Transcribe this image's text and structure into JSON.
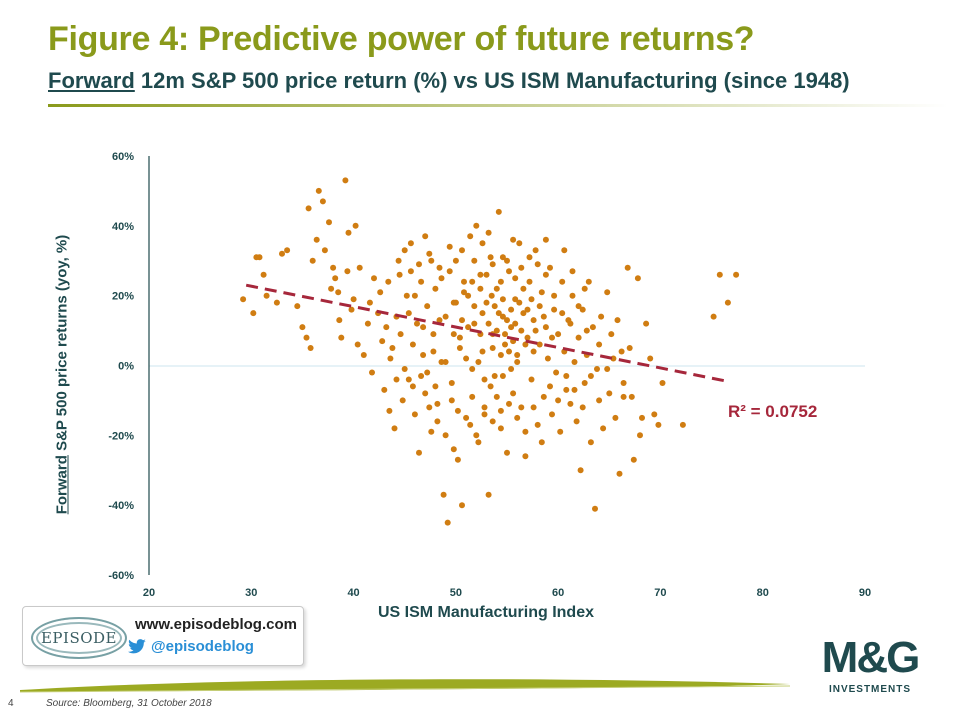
{
  "header": {
    "title": "Figure 4: Predictive power of future returns?",
    "subtitle_underlined": "Forward",
    "subtitle_rest": " 12m S&P 500 price return (%) vs US ISM Manufacturing (since 1948)"
  },
  "chart_data": {
    "type": "scatter",
    "xlabel": "US ISM Manufacturing Index",
    "ylabel_underlined": "Forward",
    "ylabel_rest": " S&P 500 price returns (yoy, %)",
    "xlim": [
      20,
      90
    ],
    "ylim": [
      -60,
      60
    ],
    "x_ticks": [
      "20",
      "30",
      "40",
      "50",
      "60",
      "70",
      "80",
      "90"
    ],
    "y_ticks": [
      "60%",
      "40%",
      "20%",
      "0%",
      "-20%",
      "-40%",
      "-60%"
    ],
    "grid": false,
    "trendline": {
      "x": [
        29.5,
        76.5
      ],
      "y": [
        23,
        -4.5
      ],
      "annotation": "R² = 0.0752"
    },
    "colors": {
      "points": "#d07d12",
      "trendline": "#a6273b",
      "axis": "#1f4a4e",
      "zero_line": "#cde6ef"
    },
    "points": [
      [
        29.2,
        19
      ],
      [
        30.2,
        15
      ],
      [
        30.5,
        31
      ],
      [
        30.8,
        31
      ],
      [
        31.2,
        26
      ],
      [
        31.5,
        20
      ],
      [
        32.5,
        18
      ],
      [
        33,
        32
      ],
      [
        33.5,
        33
      ],
      [
        34.5,
        17
      ],
      [
        35,
        11
      ],
      [
        35.4,
        8
      ],
      [
        35.8,
        5
      ],
      [
        35.6,
        45
      ],
      [
        36,
        30
      ],
      [
        36.4,
        36
      ],
      [
        36.6,
        50
      ],
      [
        37,
        47
      ],
      [
        37.2,
        33
      ],
      [
        37.6,
        41
      ],
      [
        38,
        28
      ],
      [
        38.2,
        25
      ],
      [
        38.5,
        21
      ],
      [
        38.8,
        8
      ],
      [
        39.2,
        53
      ],
      [
        39.5,
        38
      ],
      [
        39.8,
        16
      ],
      [
        40,
        19
      ],
      [
        40.2,
        40
      ],
      [
        40.6,
        28
      ],
      [
        41,
        3
      ],
      [
        41.4,
        12
      ],
      [
        41.8,
        -2
      ],
      [
        42,
        25
      ],
      [
        42.4,
        15
      ],
      [
        42.8,
        7
      ],
      [
        43,
        -7
      ],
      [
        43.2,
        11
      ],
      [
        43.5,
        -13
      ],
      [
        43.8,
        5
      ],
      [
        44,
        -18
      ],
      [
        44.2,
        14
      ],
      [
        44.5,
        26
      ],
      [
        44.8,
        -10
      ],
      [
        45,
        33
      ],
      [
        45.2,
        20
      ],
      [
        45.4,
        -4
      ],
      [
        45.6,
        27
      ],
      [
        45.8,
        6
      ],
      [
        46,
        -14
      ],
      [
        46.2,
        12
      ],
      [
        46.4,
        -25
      ],
      [
        46.6,
        24
      ],
      [
        46.8,
        3
      ],
      [
        47,
        -8
      ],
      [
        47.2,
        17
      ],
      [
        47.4,
        32
      ],
      [
        47.6,
        -19
      ],
      [
        47.8,
        9
      ],
      [
        48,
        22
      ],
      [
        48.2,
        -11
      ],
      [
        48.4,
        28
      ],
      [
        48.6,
        1
      ],
      [
        48.8,
        -37
      ],
      [
        49,
        14
      ],
      [
        49.2,
        -45
      ],
      [
        49.4,
        34
      ],
      [
        49.6,
        -5
      ],
      [
        49.8,
        18
      ],
      [
        50,
        30
      ],
      [
        50.2,
        -27
      ],
      [
        50.4,
        8
      ],
      [
        50.6,
        -40
      ],
      [
        50.8,
        24
      ],
      [
        51,
        -15
      ],
      [
        51.2,
        20
      ],
      [
        51.4,
        37
      ],
      [
        51.6,
        -9
      ],
      [
        51.8,
        12
      ],
      [
        52,
        40
      ],
      [
        52.2,
        -22
      ],
      [
        52.4,
        26
      ],
      [
        52.6,
        4
      ],
      [
        52.8,
        -14
      ],
      [
        53,
        18
      ],
      [
        53.2,
        -37
      ],
      [
        53.4,
        31
      ],
      [
        53.6,
        9
      ],
      [
        53.8,
        -3
      ],
      [
        54,
        22
      ],
      [
        54.2,
        44
      ],
      [
        54.4,
        -18
      ],
      [
        54.6,
        14
      ],
      [
        54.8,
        6
      ],
      [
        55,
        -25
      ],
      [
        55.2,
        27
      ],
      [
        55.4,
        11
      ],
      [
        55.6,
        -8
      ],
      [
        55.8,
        19
      ],
      [
        56,
        3
      ],
      [
        56.2,
        35
      ],
      [
        56.4,
        -12
      ],
      [
        56.6,
        15
      ],
      [
        56.8,
        -26
      ],
      [
        57,
        8
      ],
      [
        57.2,
        24
      ],
      [
        57.4,
        -4
      ],
      [
        57.6,
        13
      ],
      [
        57.8,
        33
      ],
      [
        58,
        -17
      ],
      [
        58.2,
        6
      ],
      [
        58.4,
        21
      ],
      [
        58.6,
        -9
      ],
      [
        58.8,
        11
      ],
      [
        59,
        2
      ],
      [
        59.2,
        28
      ],
      [
        59.4,
        -14
      ],
      [
        59.6,
        16
      ],
      [
        59.8,
        -2
      ],
      [
        60,
        9
      ],
      [
        60.2,
        -19
      ],
      [
        60.4,
        24
      ],
      [
        60.6,
        4
      ],
      [
        60.8,
        -7
      ],
      [
        61,
        13
      ],
      [
        61.2,
        -11
      ],
      [
        61.4,
        20
      ],
      [
        61.6,
        1
      ],
      [
        61.8,
        -16
      ],
      [
        62,
        8
      ],
      [
        62.2,
        -30
      ],
      [
        62.4,
        16
      ],
      [
        62.6,
        -5
      ],
      [
        62.8,
        3
      ],
      [
        63,
        24
      ],
      [
        63.2,
        -22
      ],
      [
        63.4,
        11
      ],
      [
        63.6,
        -41
      ],
      [
        63.8,
        -1
      ],
      [
        64,
        6
      ],
      [
        64.4,
        -18
      ],
      [
        64.8,
        21
      ],
      [
        65,
        -8
      ],
      [
        65.4,
        2
      ],
      [
        65.8,
        13
      ],
      [
        66,
        -31
      ],
      [
        66.4,
        -9
      ],
      [
        66.8,
        28
      ],
      [
        67,
        5
      ],
      [
        67.4,
        -27
      ],
      [
        67.8,
        25
      ],
      [
        68.2,
        -15
      ],
      [
        68.6,
        12
      ],
      [
        69,
        2
      ],
      [
        69.4,
        -14
      ],
      [
        69.8,
        -17
      ],
      [
        70.2,
        -5
      ],
      [
        72.2,
        -17
      ],
      [
        75.2,
        14
      ],
      [
        75.8,
        26
      ],
      [
        76.6,
        18
      ],
      [
        77.4,
        26
      ],
      [
        53.5,
        20
      ],
      [
        53.8,
        17
      ],
      [
        54.2,
        15
      ],
      [
        54.6,
        19
      ],
      [
        55,
        13
      ],
      [
        55.4,
        16
      ],
      [
        55.8,
        12
      ],
      [
        56.2,
        18
      ],
      [
        53.2,
        12
      ],
      [
        54,
        10
      ],
      [
        54.8,
        9
      ],
      [
        55.6,
        7
      ],
      [
        56.4,
        10
      ],
      [
        52.6,
        15
      ],
      [
        51.8,
        17
      ],
      [
        52.4,
        9
      ],
      [
        53.6,
        5
      ],
      [
        54.4,
        3
      ],
      [
        55.2,
        4
      ],
      [
        56,
        1
      ],
      [
        56.8,
        6
      ],
      [
        57.6,
        4
      ],
      [
        50.6,
        13
      ],
      [
        51.2,
        11
      ],
      [
        49.8,
        9
      ],
      [
        50.4,
        5
      ],
      [
        51,
        2
      ],
      [
        51.6,
        -1
      ],
      [
        52.2,
        1
      ],
      [
        52.8,
        -4
      ],
      [
        53.4,
        -6
      ],
      [
        54,
        -9
      ],
      [
        54.6,
        -3
      ],
      [
        55.4,
        -1
      ],
      [
        57,
        16
      ],
      [
        57.8,
        10
      ],
      [
        58.6,
        14
      ],
      [
        59.4,
        8
      ],
      [
        48.4,
        13
      ],
      [
        47.8,
        4
      ],
      [
        46.8,
        11
      ],
      [
        47.2,
        -2
      ],
      [
        48,
        -6
      ],
      [
        49,
        1
      ],
      [
        49.6,
        -10
      ],
      [
        50.2,
        -13
      ],
      [
        51.4,
        -17
      ],
      [
        52,
        -20
      ],
      [
        50,
        18
      ],
      [
        50.8,
        21
      ],
      [
        51.6,
        24
      ],
      [
        52.4,
        22
      ],
      [
        53,
        26
      ],
      [
        53.6,
        29
      ],
      [
        54.4,
        24
      ],
      [
        55,
        30
      ],
      [
        55.8,
        25
      ],
      [
        56.6,
        22
      ],
      [
        57.4,
        19
      ],
      [
        58.2,
        17
      ],
      [
        58.8,
        26
      ],
      [
        59.6,
        20
      ],
      [
        60.4,
        15
      ],
      [
        61.2,
        12
      ],
      [
        62,
        17
      ],
      [
        62.8,
        10
      ],
      [
        46,
        20
      ],
      [
        45.4,
        15
      ],
      [
        44.6,
        9
      ],
      [
        43.6,
        2
      ],
      [
        44.2,
        -4
      ],
      [
        45,
        -1
      ],
      [
        45.8,
        -6
      ],
      [
        46.6,
        -3
      ],
      [
        47.4,
        -12
      ],
      [
        48.2,
        -16
      ],
      [
        49,
        -20
      ],
      [
        49.8,
        -24
      ],
      [
        52.8,
        -12
      ],
      [
        53.6,
        -16
      ],
      [
        54.4,
        -13
      ],
      [
        55.2,
        -11
      ],
      [
        56,
        -15
      ],
      [
        56.8,
        -19
      ],
      [
        57.6,
        -12
      ],
      [
        58.4,
        -22
      ],
      [
        59.2,
        -6
      ],
      [
        60,
        -10
      ],
      [
        60.8,
        -3
      ],
      [
        61.6,
        -7
      ],
      [
        62.4,
        -12
      ],
      [
        63.2,
        -3
      ],
      [
        64,
        -10
      ],
      [
        64.8,
        -1
      ],
      [
        65.6,
        -15
      ],
      [
        66.4,
        -5
      ],
      [
        67.2,
        -9
      ],
      [
        68,
        -20
      ],
      [
        37.8,
        22
      ],
      [
        38.6,
        13
      ],
      [
        39.4,
        27
      ],
      [
        40.4,
        6
      ],
      [
        41.6,
        18
      ],
      [
        42.6,
        21
      ],
      [
        43.4,
        24
      ],
      [
        44.4,
        30
      ],
      [
        45.6,
        35
      ],
      [
        46.4,
        29
      ],
      [
        47,
        37
      ],
      [
        47.6,
        30
      ],
      [
        48.6,
        25
      ],
      [
        49.4,
        27
      ],
      [
        50.6,
        33
      ],
      [
        51.8,
        30
      ],
      [
        52.6,
        35
      ],
      [
        53.2,
        38
      ],
      [
        54.6,
        31
      ],
      [
        55.6,
        36
      ],
      [
        56.4,
        28
      ],
      [
        57.2,
        31
      ],
      [
        58,
        29
      ],
      [
        58.8,
        36
      ],
      [
        60.6,
        33
      ],
      [
        61.4,
        27
      ],
      [
        62.6,
        22
      ],
      [
        64.2,
        14
      ],
      [
        65.2,
        9
      ],
      [
        66.2,
        4
      ]
    ]
  },
  "badge": {
    "logo_text": "EPISODE",
    "url": "www.episodeblog.com",
    "handle": "@episodeblog"
  },
  "brand": {
    "logo_text": "M&G",
    "logo_sub": "INVESTMENTS"
  },
  "footer": {
    "page_number": "4",
    "source": "Source: Bloomberg, 31 October 2018"
  }
}
